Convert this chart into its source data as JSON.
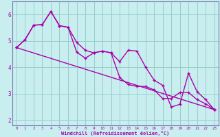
{
  "xlabel": "Windchill (Refroidissement éolien,°C)",
  "bg_color": "#c8eef0",
  "line_color": "#aa00aa",
  "grid_color": "#99cccc",
  "spine_color": "#7777aa",
  "xlim": [
    -0.5,
    23.5
  ],
  "ylim": [
    1.8,
    6.5
  ],
  "xticks": [
    0,
    1,
    2,
    3,
    4,
    5,
    6,
    7,
    8,
    9,
    10,
    11,
    12,
    13,
    14,
    15,
    16,
    17,
    18,
    19,
    20,
    21,
    22,
    23
  ],
  "yticks": [
    2,
    3,
    4,
    5,
    6
  ],
  "line1_x": [
    0,
    1,
    2,
    3,
    4,
    5,
    6,
    7,
    8,
    9,
    10,
    11,
    12,
    13,
    14,
    15,
    16,
    17,
    18,
    19,
    20,
    21,
    22,
    23
  ],
  "line1_y": [
    4.75,
    5.05,
    5.6,
    5.62,
    6.12,
    5.58,
    5.52,
    4.58,
    4.35,
    4.55,
    4.62,
    4.55,
    4.22,
    4.65,
    4.62,
    4.02,
    3.52,
    3.32,
    2.5,
    2.6,
    3.78,
    3.08,
    2.78,
    2.4
  ],
  "line2_x": [
    0,
    1,
    2,
    3,
    4,
    5,
    6,
    7,
    8,
    9,
    10,
    11,
    12,
    13,
    14,
    15,
    16,
    17,
    18,
    19,
    20,
    21,
    22,
    23
  ],
  "line2_y": [
    4.75,
    5.05,
    5.6,
    5.62,
    6.12,
    5.58,
    5.52,
    4.95,
    4.65,
    4.55,
    4.62,
    4.55,
    3.62,
    3.35,
    3.28,
    3.28,
    3.15,
    2.82,
    2.82,
    3.05,
    3.05,
    2.78,
    2.62,
    2.4
  ],
  "line3_x": [
    0,
    23
  ],
  "line3_y": [
    4.75,
    2.4
  ]
}
